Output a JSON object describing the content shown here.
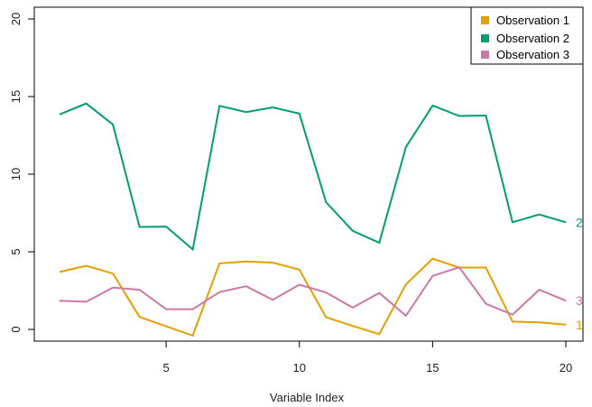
{
  "chart_data": {
    "type": "line",
    "title": "",
    "xlabel": "Variable Index",
    "ylabel": "",
    "xlim": [
      0.5,
      20.5
    ],
    "ylim": [
      -0.5,
      21
    ],
    "x_ticks": [
      5,
      10,
      15,
      20
    ],
    "y_ticks": [
      0,
      5,
      10,
      15,
      20
    ],
    "x": [
      1,
      2,
      3,
      4,
      5,
      6,
      7,
      8,
      9,
      10,
      11,
      12,
      13,
      14,
      15,
      16,
      17,
      18,
      19,
      20
    ],
    "series": [
      {
        "name": "Observation 1",
        "end_label": "1",
        "color": "#E69F00",
        "values": [
          3.7,
          4.1,
          3.6,
          0.8,
          0.2,
          -0.4,
          4.25,
          4.38,
          4.3,
          3.85,
          0.78,
          0.22,
          -0.3,
          2.9,
          4.55,
          3.98,
          3.98,
          0.5,
          0.45,
          0.3
        ]
      },
      {
        "name": "Observation 2",
        "end_label": "2",
        "color": "#009E73",
        "values": [
          13.85,
          14.55,
          13.2,
          6.6,
          6.62,
          5.15,
          14.4,
          14.0,
          14.3,
          13.9,
          8.2,
          6.35,
          5.58,
          11.75,
          14.42,
          13.75,
          13.78,
          6.9,
          7.4,
          6.9
        ]
      },
      {
        "name": "Observation 3",
        "end_label": "3",
        "color": "#CC79A7",
        "values": [
          1.85,
          1.78,
          2.7,
          2.55,
          1.3,
          1.3,
          2.4,
          2.78,
          1.9,
          2.88,
          2.38,
          1.4,
          2.35,
          0.88,
          3.45,
          4.0,
          1.65,
          0.95,
          2.55,
          1.85
        ]
      }
    ],
    "legend": {
      "position": "top-right",
      "entries": [
        "Observation 1",
        "Observation 2",
        "Observation 3"
      ]
    }
  }
}
